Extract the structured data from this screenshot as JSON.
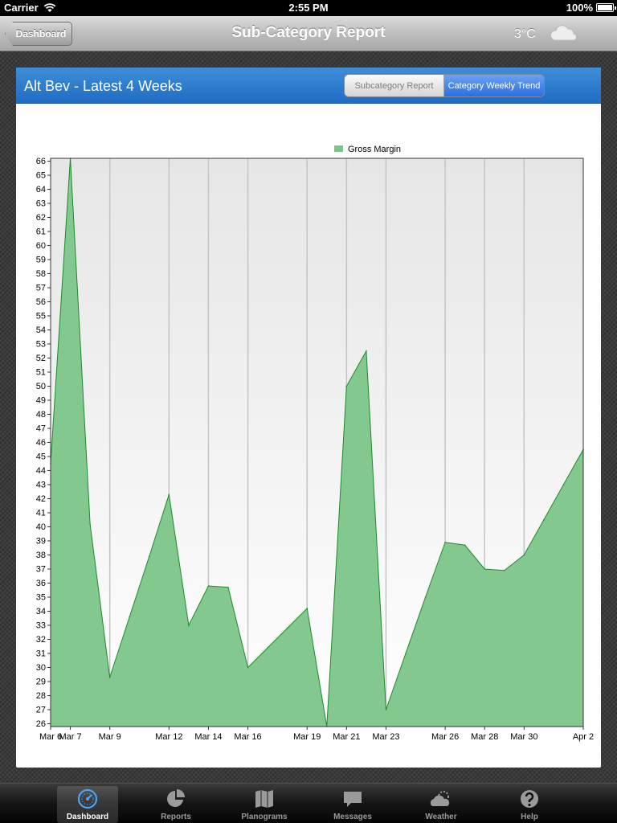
{
  "status_bar": {
    "carrier": "Carrier",
    "time": "2:55 PM",
    "battery": "100%",
    "battery_level": 1.0
  },
  "nav": {
    "back_label": "Dashboard",
    "title": "Sub-Category Report",
    "temperature": "3°C",
    "weather_icon": "cloud-icon"
  },
  "panel": {
    "title": "Alt Bev - Latest 4 Weeks",
    "segments": [
      {
        "label": "Subcategory Report",
        "selected": false
      },
      {
        "label": "Category Weekly Trend",
        "selected": true
      }
    ]
  },
  "chart_data": {
    "type": "area",
    "series": [
      {
        "name": "Gross Margin",
        "x": [
          "Mar 6",
          "Mar 7",
          "Mar 8",
          "Mar 9",
          "Mar 10",
          "Mar 11",
          "Mar 12",
          "Mar 13",
          "Mar 14",
          "Mar 15",
          "Mar 16",
          "Mar 17",
          "Mar 18",
          "Mar 19",
          "Mar 20",
          "Mar 21",
          "Mar 22",
          "Mar 23",
          "Mar 24",
          "Mar 25",
          "Mar 26",
          "Mar 27",
          "Mar 28",
          "Mar 29",
          "Mar 30",
          "Mar 31",
          "Apr 1",
          "Apr 2"
        ],
        "values": [
          44.5,
          66.2,
          40.2,
          29.3,
          33.6,
          37.9,
          42.3,
          33.0,
          35.8,
          35.7,
          30.0,
          31.4,
          32.8,
          34.2,
          25.8,
          50.0,
          52.5,
          27.0,
          31.0,
          35.0,
          38.9,
          38.7,
          37.0,
          36.9,
          38.0,
          40.5,
          43.0,
          45.5
        ]
      }
    ],
    "x_tick_labels": [
      "Mar 6",
      "Mar 7",
      "Mar 9",
      "Mar 12",
      "Mar 14",
      "Mar 16",
      "Mar 19",
      "Mar 21",
      "Mar 23",
      "Mar 26",
      "Mar 28",
      "Mar 30",
      "Apr 2"
    ],
    "x_tick_dates": [
      "Mar 6",
      "Mar 7",
      "Mar 9",
      "Mar 12",
      "Mar 14",
      "Mar 16",
      "Mar 19",
      "Mar 21",
      "Mar 23",
      "Mar 26",
      "Mar 28",
      "Mar 30",
      "Apr 2"
    ],
    "ylim": [
      25.8,
      66.2
    ],
    "y_ticks": [
      26,
      27,
      28,
      29,
      30,
      31,
      32,
      33,
      34,
      35,
      36,
      37,
      38,
      39,
      40,
      41,
      42,
      43,
      44,
      45,
      46,
      47,
      48,
      49,
      50,
      51,
      52,
      53,
      54,
      55,
      56,
      57,
      58,
      59,
      60,
      61,
      62,
      63,
      64,
      65,
      66
    ],
    "legend": "top",
    "grid": "vertical",
    "colors": {
      "fill": "#82c88f",
      "line": "#1e8a2e",
      "legend_swatch": "#7cc48a"
    }
  },
  "tabs": [
    {
      "label": "Dashboard",
      "icon": "dashboard-icon",
      "active": true
    },
    {
      "label": "Reports",
      "icon": "pie-chart-icon",
      "active": false
    },
    {
      "label": "Planograms",
      "icon": "book-icon",
      "active": false
    },
    {
      "label": "Messages",
      "icon": "chat-bubble-icon",
      "active": false
    },
    {
      "label": "Weather",
      "icon": "weather-icon",
      "active": false
    },
    {
      "label": "Help",
      "icon": "help-icon",
      "active": false
    }
  ]
}
